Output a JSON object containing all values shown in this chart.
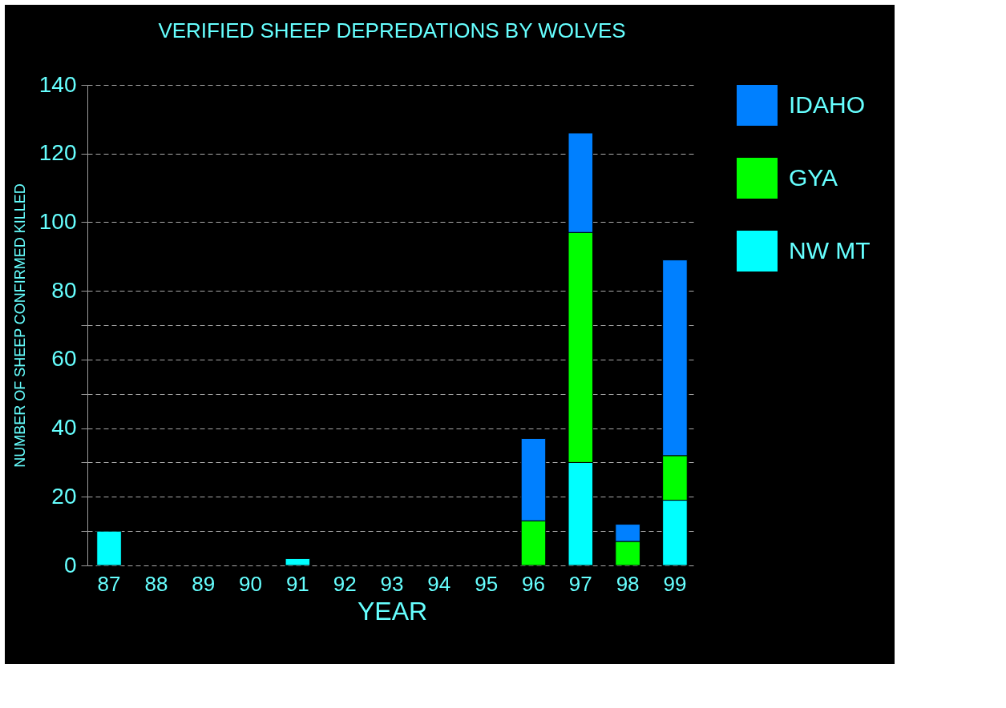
{
  "chart_data": {
    "type": "bar",
    "title": "VERIFIED SHEEP DEPREDATIONS BY WOLVES",
    "xlabel": "YEAR",
    "ylabel": "NUMBER OF SHEEP CONFIRMED KILLED",
    "categories": [
      "87",
      "88",
      "89",
      "90",
      "91",
      "92",
      "93",
      "94",
      "95",
      "96",
      "97",
      "98",
      "99"
    ],
    "stacked": true,
    "series": [
      {
        "name": "NW MT",
        "color": "#00ffff",
        "values": [
          10,
          null,
          null,
          null,
          2,
          null,
          null,
          null,
          null,
          null,
          30,
          null,
          19
        ]
      },
      {
        "name": "GYA",
        "color": "#00ff00",
        "values": [
          null,
          null,
          null,
          null,
          null,
          null,
          null,
          null,
          null,
          13,
          67,
          7,
          13
        ]
      },
      {
        "name": "IDAHO",
        "color": "#0080ff",
        "values": [
          null,
          null,
          null,
          null,
          null,
          null,
          null,
          null,
          null,
          24,
          29,
          5,
          57
        ]
      }
    ],
    "ylim": [
      0,
      140
    ],
    "yticks": [
      0,
      {
        "value": 10,
        "label": null
      },
      20,
      {
        "value": 30,
        "label": null
      },
      40,
      {
        "value": 50,
        "label": null
      },
      60,
      {
        "value": 70,
        "label": null
      },
      80,
      100,
      120,
      140
    ],
    "grid": "y",
    "legend": "right"
  }
}
